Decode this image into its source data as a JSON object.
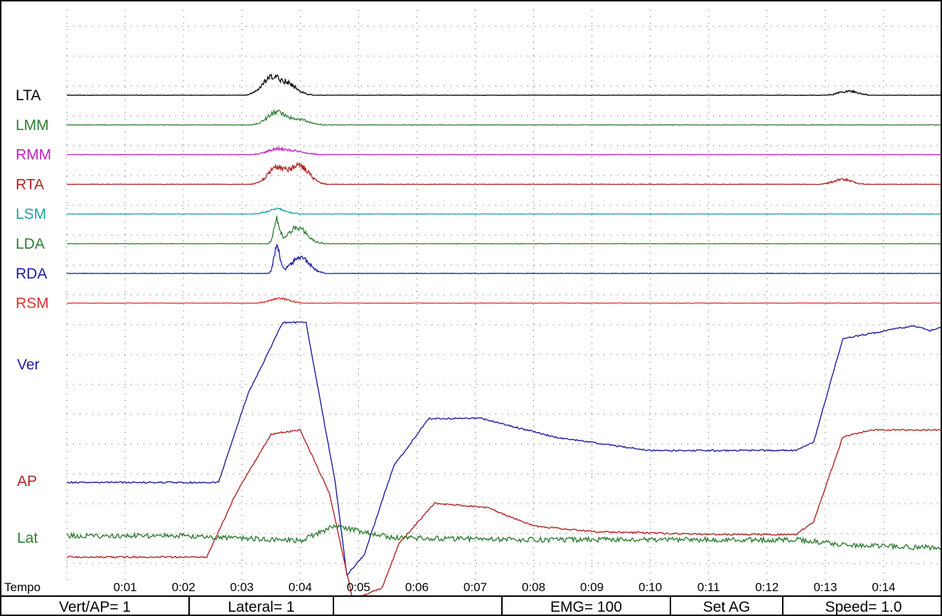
{
  "chart_data": {
    "type": "line",
    "x_axis": {
      "label": "Tempo",
      "unit_note": "minutes:seconds",
      "ticks": [
        "0:01",
        "0:02",
        "0:03",
        "0:04",
        "0:05",
        "0:06",
        "0:07",
        "0:08",
        "0:09",
        "0:10",
        "0:11",
        "0:12",
        "0:13",
        "0:14"
      ],
      "range": [
        0,
        15
      ]
    },
    "grid": true,
    "emg_channels": [
      {
        "name": "LTA",
        "color": "#000000",
        "baseline": 0.0,
        "peaks": [
          {
            "t": 3.5,
            "amp": 1.0
          },
          {
            "t": 3.8,
            "amp": 0.6
          },
          {
            "t": 13.4,
            "amp": 0.25
          }
        ]
      },
      {
        "name": "LMM",
        "color": "#2e7d32",
        "baseline": 0.0,
        "peaks": [
          {
            "t": 3.6,
            "amp": 0.8
          },
          {
            "t": 4.0,
            "amp": 0.3
          }
        ]
      },
      {
        "name": "RMM",
        "color": "#c020c0",
        "baseline": 0.0,
        "peaks": [
          {
            "t": 3.6,
            "amp": 0.35
          },
          {
            "t": 3.95,
            "amp": 0.2
          }
        ]
      },
      {
        "name": "RTA",
        "color": "#b22222",
        "baseline": 0.0,
        "peaks": [
          {
            "t": 3.6,
            "amp": 1.0
          },
          {
            "t": 4.0,
            "amp": 1.1
          },
          {
            "t": 13.3,
            "amp": 0.3
          }
        ]
      },
      {
        "name": "LSM",
        "color": "#1aa3a3",
        "baseline": 0.0,
        "peaks": [
          {
            "t": 3.6,
            "amp": 0.3
          }
        ]
      },
      {
        "name": "LDA",
        "color": "#2e7d32",
        "baseline": 0.0,
        "peaks": [
          {
            "t": 3.6,
            "amp": 1.4
          },
          {
            "t": 3.95,
            "amp": 1.0
          }
        ]
      },
      {
        "name": "RDA",
        "color": "#1c1c9e",
        "baseline": 0.0,
        "peaks": [
          {
            "t": 3.6,
            "amp": 1.6
          },
          {
            "t": 4.0,
            "amp": 1.0
          }
        ]
      },
      {
        "name": "RSM",
        "color": "#e03030",
        "baseline": 0.0,
        "peaks": [
          {
            "t": 3.65,
            "amp": 0.3
          }
        ]
      }
    ],
    "force_series": [
      {
        "name": "Ver",
        "color": "#1c1c9e",
        "points": [
          [
            0,
            0.0
          ],
          [
            2.6,
            0.0
          ],
          [
            3.1,
            0.55
          ],
          [
            3.7,
            1.0
          ],
          [
            4.1,
            1.0
          ],
          [
            4.6,
            0.0
          ],
          [
            4.8,
            -0.58
          ],
          [
            5.1,
            -0.45
          ],
          [
            5.6,
            0.1
          ],
          [
            6.2,
            0.4
          ],
          [
            7.1,
            0.4
          ],
          [
            8.4,
            0.28
          ],
          [
            10.0,
            0.2
          ],
          [
            12.5,
            0.2
          ],
          [
            12.8,
            0.25
          ],
          [
            13.3,
            0.9
          ],
          [
            14.5,
            0.98
          ],
          [
            14.8,
            0.95
          ],
          [
            15,
            0.97
          ]
        ]
      },
      {
        "name": "AP",
        "color": "#b22222",
        "points": [
          [
            0,
            0.0
          ],
          [
            2.4,
            0.0
          ],
          [
            2.9,
            0.45
          ],
          [
            3.5,
            0.87
          ],
          [
            4.0,
            0.9
          ],
          [
            4.5,
            0.45
          ],
          [
            4.9,
            -0.3
          ],
          [
            5.4,
            -0.22
          ],
          [
            5.7,
            0.1
          ],
          [
            6.3,
            0.38
          ],
          [
            7.2,
            0.35
          ],
          [
            8.0,
            0.22
          ],
          [
            9.0,
            0.18
          ],
          [
            11.0,
            0.16
          ],
          [
            12.5,
            0.16
          ],
          [
            12.8,
            0.25
          ],
          [
            13.3,
            0.85
          ],
          [
            13.8,
            0.9
          ],
          [
            15,
            0.9
          ]
        ]
      },
      {
        "name": "Lat",
        "color": "#2e7d32",
        "points": [
          [
            0,
            0.0
          ],
          [
            2.0,
            0.0
          ],
          [
            2.8,
            -0.02
          ],
          [
            4.0,
            -0.05
          ],
          [
            4.6,
            0.1
          ],
          [
            5.0,
            0.05
          ],
          [
            5.6,
            -0.02
          ],
          [
            8.0,
            -0.04
          ],
          [
            12.5,
            -0.04
          ],
          [
            13.5,
            -0.1
          ],
          [
            15,
            -0.12
          ]
        ]
      }
    ]
  },
  "statusbar": {
    "vert_ap": "Vert/AP= 1",
    "lateral": "Lateral= 1",
    "blank": "",
    "emg": "EMG= 100",
    "set_ag": "Set AG",
    "speed": "Speed= 1.0"
  }
}
